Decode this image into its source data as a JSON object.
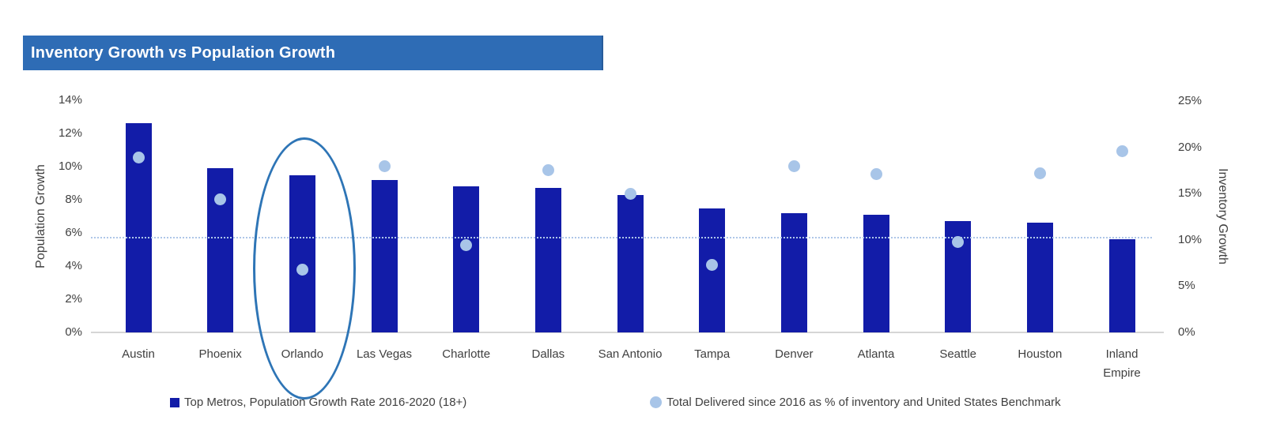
{
  "title": {
    "text": "Inventory Growth vs Population Growth"
  },
  "chart_data": {
    "type": "bar",
    "subtype": "combo-bar-scatter",
    "categories": [
      "Austin",
      "Phoenix",
      "Orlando",
      "Las Vegas",
      "Charlotte",
      "Dallas",
      "San Antonio",
      "Tampa",
      "Denver",
      "Atlanta",
      "Seattle",
      "Houston",
      "Inland Empire"
    ],
    "x_labels": [
      "Austin",
      "Phoenix",
      "Orlando",
      "Las Vegas",
      "Charlotte",
      "Dallas",
      "San Antonio",
      "Tampa",
      "Denver",
      "Atlanta",
      "Seattle",
      "Houston",
      "Inland\nEmpire"
    ],
    "series": [
      {
        "name": "Top Metros, Population Growth Rate 2016-2020 (18+)",
        "type": "bar",
        "axis": "left",
        "values": [
          12.6,
          9.9,
          9.5,
          9.2,
          8.8,
          8.7,
          8.3,
          7.5,
          7.2,
          7.1,
          6.7,
          6.6,
          5.6
        ]
      },
      {
        "name": "Total Delivered since 2016 as % of inventory and United States Benchmark",
        "type": "scatter",
        "axis": "right",
        "values": [
          18.9,
          14.4,
          6.8,
          18.0,
          9.4,
          17.5,
          15.0,
          7.3,
          18.0,
          17.1,
          9.8,
          17.2,
          19.6
        ]
      }
    ],
    "left_axis": {
      "label": "Population Growth",
      "min": 0,
      "max": 14,
      "ticks": [
        "0%",
        "2%",
        "4%",
        "6%",
        "8%",
        "10%",
        "12%",
        "14%"
      ]
    },
    "right_axis": {
      "label": "Inventory Growth",
      "min": 0,
      "max": 25,
      "ticks": [
        "0%",
        "5%",
        "10%",
        "15%",
        "20%",
        "25%"
      ]
    },
    "benchmark_line": {
      "axis": "right",
      "value": 10.2,
      "style": "dotted",
      "meaning": "United States Benchmark"
    },
    "annotation": {
      "type": "ellipse",
      "category": "Orlando"
    },
    "legend_position": "bottom",
    "grid": "off",
    "colors": {
      "bar": "#121CA8",
      "dot": "#A8C5E8",
      "title_bg": "#2E6CB5",
      "ellipse_stroke": "#2E75B6",
      "baseline": "#D6D6D6",
      "benchmark": "#AEC6E8",
      "text": "#404040"
    }
  }
}
